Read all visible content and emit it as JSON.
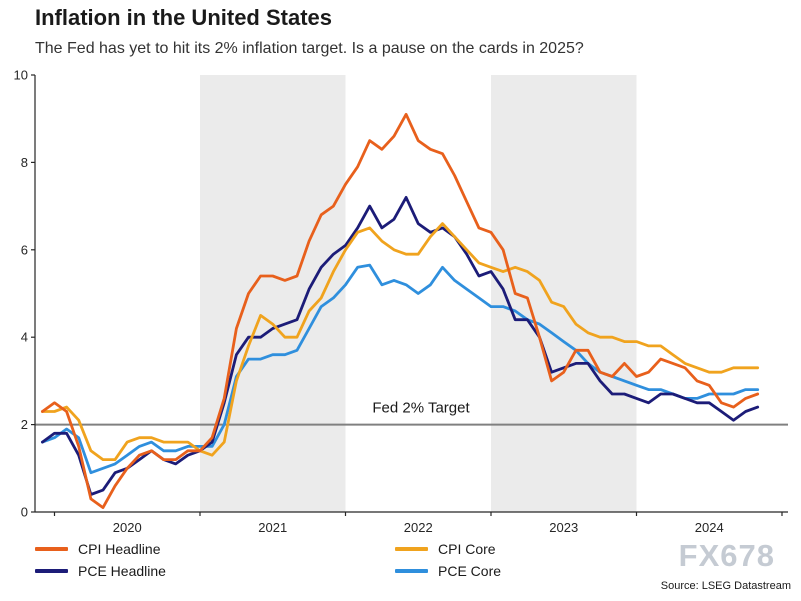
{
  "page": {
    "title": "Inflation in the United States",
    "subtitle": "The Fed has yet to hit its 2% inflation target. Is a pause on the cards in 2025?"
  },
  "watermark": "FX678",
  "source": "Source: LSEG Datastream",
  "chart_data": {
    "type": "line",
    "title": "Inflation in the United States",
    "subtitle": "The Fed has yet to hit its 2% inflation target. Is a pause on the cards in 2025?",
    "x_start": "2019-12",
    "frequency": "monthly",
    "xlabel": "",
    "ylabel": "",
    "ylim": [
      0,
      10
    ],
    "yticks": [
      0,
      2,
      4,
      6,
      8,
      10
    ],
    "xticks": [
      "2020",
      "2021",
      "2022",
      "2023",
      "2024"
    ],
    "grid": false,
    "legend_position": "bottom",
    "band_color": "#ebebeb",
    "shaded_years": [
      2021,
      2023
    ],
    "axis_color": "#262626",
    "target_line": {
      "value": 2,
      "label": "Fed 2% Target",
      "color": "#808080"
    },
    "series": [
      {
        "name": "CPI Headline",
        "color": "#e8601c",
        "values": [
          2.3,
          2.5,
          2.3,
          1.5,
          0.3,
          0.1,
          0.6,
          1.0,
          1.3,
          1.4,
          1.2,
          1.2,
          1.4,
          1.4,
          1.7,
          2.6,
          4.2,
          5.0,
          5.4,
          5.4,
          5.3,
          5.4,
          6.2,
          6.8,
          7.0,
          7.5,
          7.9,
          8.5,
          8.3,
          8.6,
          9.1,
          8.5,
          8.3,
          8.2,
          7.7,
          7.1,
          6.5,
          6.4,
          6.0,
          5.0,
          4.9,
          4.0,
          3.0,
          3.2,
          3.7,
          3.7,
          3.2,
          3.1,
          3.4,
          3.1,
          3.2,
          3.5,
          3.4,
          3.3,
          3.0,
          2.9,
          2.5,
          2.4,
          2.6,
          2.7
        ]
      },
      {
        "name": "CPI Core",
        "color": "#f0a31e",
        "values": [
          2.3,
          2.3,
          2.4,
          2.1,
          1.4,
          1.2,
          1.2,
          1.6,
          1.7,
          1.7,
          1.6,
          1.6,
          1.6,
          1.4,
          1.3,
          1.6,
          3.0,
          3.8,
          4.5,
          4.3,
          4.0,
          4.0,
          4.6,
          4.9,
          5.5,
          6.0,
          6.4,
          6.5,
          6.2,
          6.0,
          5.9,
          5.9,
          6.3,
          6.6,
          6.3,
          6.0,
          5.7,
          5.6,
          5.5,
          5.6,
          5.5,
          5.3,
          4.8,
          4.7,
          4.3,
          4.1,
          4.0,
          4.0,
          3.9,
          3.9,
          3.8,
          3.8,
          3.6,
          3.4,
          3.3,
          3.2,
          3.2,
          3.3,
          3.3,
          3.3
        ]
      },
      {
        "name": "PCE Headline",
        "color": "#1c1c78",
        "values": [
          1.6,
          1.8,
          1.8,
          1.3,
          0.4,
          0.5,
          0.9,
          1.0,
          1.2,
          1.4,
          1.2,
          1.1,
          1.3,
          1.4,
          1.6,
          2.5,
          3.6,
          4.0,
          4.0,
          4.2,
          4.3,
          4.4,
          5.1,
          5.6,
          5.9,
          6.1,
          6.5,
          7.0,
          6.5,
          6.7,
          7.2,
          6.6,
          6.4,
          6.5,
          6.3,
          5.9,
          5.4,
          5.5,
          5.1,
          4.4,
          4.4,
          4.0,
          3.2,
          3.3,
          3.4,
          3.4,
          3.0,
          2.7,
          2.7,
          2.6,
          2.5,
          2.7,
          2.7,
          2.6,
          2.5,
          2.5,
          2.3,
          2.1,
          2.3,
          2.4
        ]
      },
      {
        "name": "PCE Core",
        "color": "#2f8fdd",
        "values": [
          1.6,
          1.7,
          1.9,
          1.7,
          0.9,
          1.0,
          1.1,
          1.3,
          1.5,
          1.6,
          1.4,
          1.4,
          1.5,
          1.5,
          1.5,
          2.0,
          3.1,
          3.5,
          3.5,
          3.6,
          3.6,
          3.7,
          4.2,
          4.7,
          4.9,
          5.2,
          5.6,
          5.65,
          5.2,
          5.3,
          5.2,
          5.0,
          5.2,
          5.6,
          5.3,
          5.1,
          4.9,
          4.7,
          4.7,
          4.6,
          4.4,
          4.3,
          4.1,
          3.9,
          3.7,
          3.4,
          3.2,
          3.1,
          3.0,
          2.9,
          2.8,
          2.8,
          2.7,
          2.6,
          2.6,
          2.7,
          2.7,
          2.7,
          2.8,
          2.8
        ]
      }
    ]
  }
}
